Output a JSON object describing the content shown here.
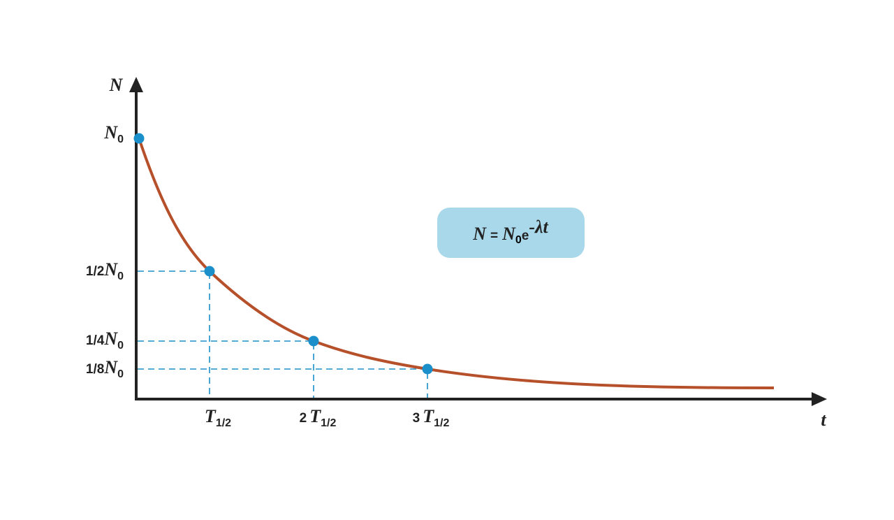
{
  "axes": {
    "y_label": "N",
    "x_label": "t"
  },
  "y_labels": [
    {
      "symbol": "N",
      "sub": "0"
    },
    {
      "coef": "1/2",
      "symbol": "N",
      "sub": "0"
    },
    {
      "coef": "1/4",
      "symbol": "N",
      "sub": "0"
    },
    {
      "coef": "1/8",
      "symbol": "N",
      "sub": "0"
    }
  ],
  "x_labels": [
    {
      "symbol": "T",
      "sub": "1/2"
    },
    {
      "coef": "2",
      "symbol": "T",
      "sub": "1/2"
    },
    {
      "coef": "3",
      "symbol": "T",
      "sub": "1/2"
    }
  ],
  "formula": {
    "lhs": "N",
    "eq": "=",
    "base": "N",
    "base_sub": "0",
    "e": "e",
    "exponent": "-λt"
  }
}
